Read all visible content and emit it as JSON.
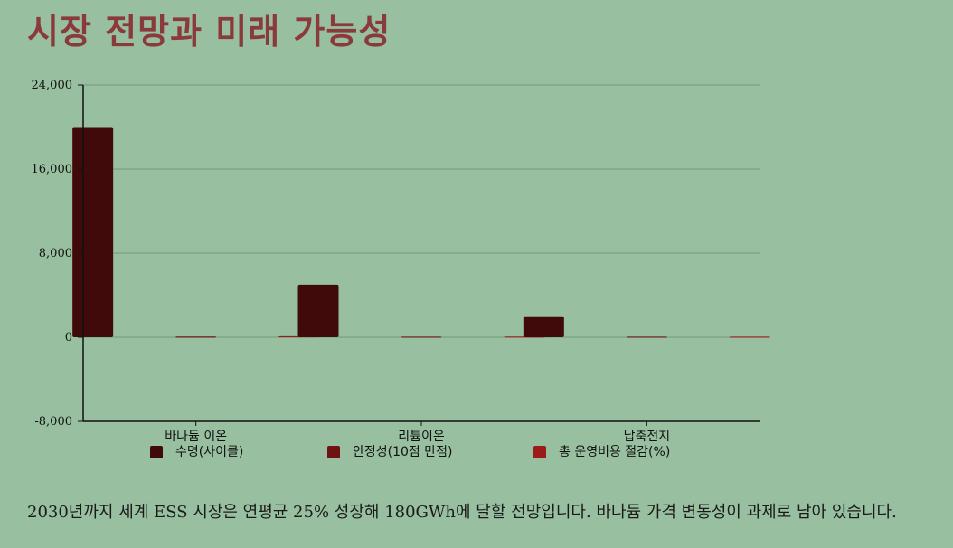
{
  "page": {
    "title": "시장 전망과 미래 가능성",
    "caption": "2030년까지 세계 ESS 시장은 연평균 25% 성장해 180GWh에 달할 전망입니다. 바나듐 가격 변동성이 과제로 남아 있습니다."
  },
  "colors": {
    "background": "#98c0a0",
    "title": "#8a3a3a",
    "series": [
      "#410a0a",
      "#6e1212",
      "#9b1a1a"
    ],
    "grid": "#6e9a78"
  },
  "chart_data": {
    "type": "bar",
    "title": "",
    "xlabel": "",
    "ylabel": "",
    "categories": [
      "바나듐 이온",
      "리튬이온",
      "납축전지"
    ],
    "series": [
      {
        "name": "수명(사이클)",
        "values": [
          20000,
          5000,
          2000
        ]
      },
      {
        "name": "안정성(10점 만점)",
        "values": [
          9,
          6,
          4
        ]
      },
      {
        "name": "총 운영비용 절감(%)",
        "values": [
          40,
          15,
          5
        ]
      }
    ],
    "ylim": [
      -8000,
      24000
    ],
    "yticks": [
      -8000,
      0,
      8000,
      16000,
      24000
    ],
    "ytick_labels": [
      "-8,000",
      "0",
      "8,000",
      "16,000",
      "24,000"
    ],
    "grid": true,
    "legend": "bottom"
  }
}
